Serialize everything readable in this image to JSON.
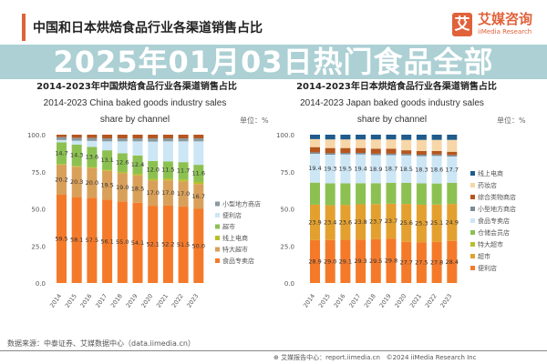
{
  "header": {
    "title": "中国和日本烘焙食品行业各渠道销售占比",
    "logo_cn": "艾媒咨询",
    "logo_en": "iiMedia Research",
    "logo_glyph": "艾"
  },
  "banner": {
    "text": "2025年01月03日热门食品全部"
  },
  "footer": {
    "source": "数据来源：中泰证券、艾媒数据中心（data.iimedia.cn）",
    "report": "艾媒报告中心：report.iimedia.cn",
    "copyright": "©2024 iiMedia Research Inc"
  },
  "chart_data": [
    {
      "type": "bar",
      "stacked": true,
      "title": "2014-2023年中国烘焙食品行业各渠道销售占比",
      "subtitle": "2014-2023 China baked goods industry sales share by channel",
      "unit": "单位：%",
      "ylim": [
        0,
        100
      ],
      "yticks": [
        "0.0",
        "25.0",
        "50.0",
        "75.0",
        "100.0"
      ],
      "legend": "right",
      "categories": [
        "2014",
        "2015",
        "2016",
        "2017",
        "2018",
        "2019",
        "2020",
        "2021",
        "2022",
        "2023"
      ],
      "series": [
        {
          "name": "食品专卖店",
          "color": "#f47a2a",
          "values": [
            59.5,
            58.1,
            57.5,
            56.1,
            55.0,
            54.1,
            52.1,
            52.2,
            51.5,
            50.0
          ],
          "labeled": true
        },
        {
          "name": "特大超市",
          "color": "#d9a05a",
          "values": [
            20.2,
            20.3,
            20.0,
            19.5,
            19.0,
            18.5,
            17.0,
            17.0,
            17.0,
            16.7
          ],
          "labeled": true
        },
        {
          "name": "线上电商",
          "color": "#b8bf2a",
          "values": [
            0.5,
            0.6,
            0.7,
            0.8,
            0.9,
            1.0,
            1.2,
            1.3,
            1.3,
            1.4
          ],
          "labeled": false
        },
        {
          "name": "超市",
          "color": "#8cc152",
          "values": [
            14.7,
            14.3,
            13.6,
            13.1,
            12.6,
            12.4,
            12.0,
            11.5,
            11.7,
            11.6
          ],
          "labeled": true
        },
        {
          "name": "便利店",
          "color": "#cde6f5",
          "values": [
            1.5,
            2.6,
            4.0,
            6.0,
            8.0,
            9.5,
            13.0,
            13.5,
            14.0,
            15.8
          ],
          "labeled": false
        },
        {
          "name": "小型地方商店",
          "color": "#8a9aa0",
          "values": [
            2.0,
            2.0,
            2.0,
            2.0,
            2.0,
            2.0,
            2.2,
            2.0,
            2.0,
            2.0
          ],
          "labeled": false
        },
        {
          "color": "#b5561e",
          "values": [
            1.6,
            2.1,
            2.2,
            2.5,
            2.5,
            2.5,
            2.5,
            2.5,
            2.5,
            2.5
          ],
          "labeled": false
        }
      ]
    },
    {
      "type": "bar",
      "stacked": true,
      "title": "2014-2023年日本烘焙食品行业各渠道销售占比",
      "subtitle": "2014-2023 Japan baked goods industry sales share by channel",
      "unit": "单位：%",
      "ylim": [
        0,
        100
      ],
      "yticks": [
        "0.0",
        "25.0",
        "50.0",
        "75.0",
        "100.0"
      ],
      "legend": "right",
      "categories": [
        "2014",
        "2015",
        "2016",
        "2017",
        "2018",
        "2019",
        "2020",
        "2021",
        "2022",
        "2023"
      ],
      "series": [
        {
          "name": "便利店",
          "color": "#f47a2a",
          "values": [
            28.9,
            29.0,
            29.1,
            29.3,
            29.5,
            29.8,
            27.7,
            27.5,
            27.8,
            28.4
          ],
          "labeled": true
        },
        {
          "name": "超市",
          "color": "#e3a02e",
          "values": [
            23.9,
            23.4,
            23.6,
            23.8,
            23.7,
            23.7,
            25.6,
            25.3,
            25.1,
            24.9
          ],
          "labeled": true
        },
        {
          "name": "特大超市",
          "color": "#b8bf2a",
          "values": [
            0,
            0,
            0,
            0,
            0,
            0,
            0,
            0,
            0,
            0
          ],
          "labeled": false
        },
        {
          "name": "仓储会员店",
          "color": "#8cc152",
          "values": [
            14.9,
            14.8,
            14.5,
            14.2,
            14.1,
            14.0,
            14.2,
            14.4,
            14.2,
            14.3
          ],
          "labeled": false
        },
        {
          "name": "食品专卖店",
          "color": "#cde6f5",
          "values": [
            19.4,
            19.3,
            19.5,
            19.4,
            18.9,
            18.7,
            18.5,
            18.3,
            18.6,
            17.7
          ],
          "labeled": true
        },
        {
          "name": "小型地方商店",
          "color": "#7a8c96",
          "values": [
            1.0,
            1.0,
            1.0,
            1.0,
            1.0,
            1.0,
            1.0,
            1.0,
            1.0,
            1.0
          ],
          "labeled": false
        },
        {
          "name": "综合类物商店",
          "color": "#b5561e",
          "values": [
            3.5,
            3.5,
            3.3,
            3.3,
            3.3,
            3.3,
            2.5,
            2.5,
            2.3,
            2.2
          ],
          "labeled": false
        },
        {
          "name": "药妆店",
          "color": "#f7d6a8",
          "values": [
            5.4,
            5.8,
            5.8,
            5.8,
            6.3,
            6.3,
            7.0,
            7.5,
            7.5,
            8.0
          ],
          "labeled": false
        },
        {
          "name": "线上电商",
          "color": "#1f5b8c",
          "values": [
            3.0,
            3.2,
            3.2,
            3.2,
            3.2,
            3.2,
            3.5,
            3.5,
            3.5,
            3.5
          ],
          "labeled": false
        }
      ]
    }
  ]
}
